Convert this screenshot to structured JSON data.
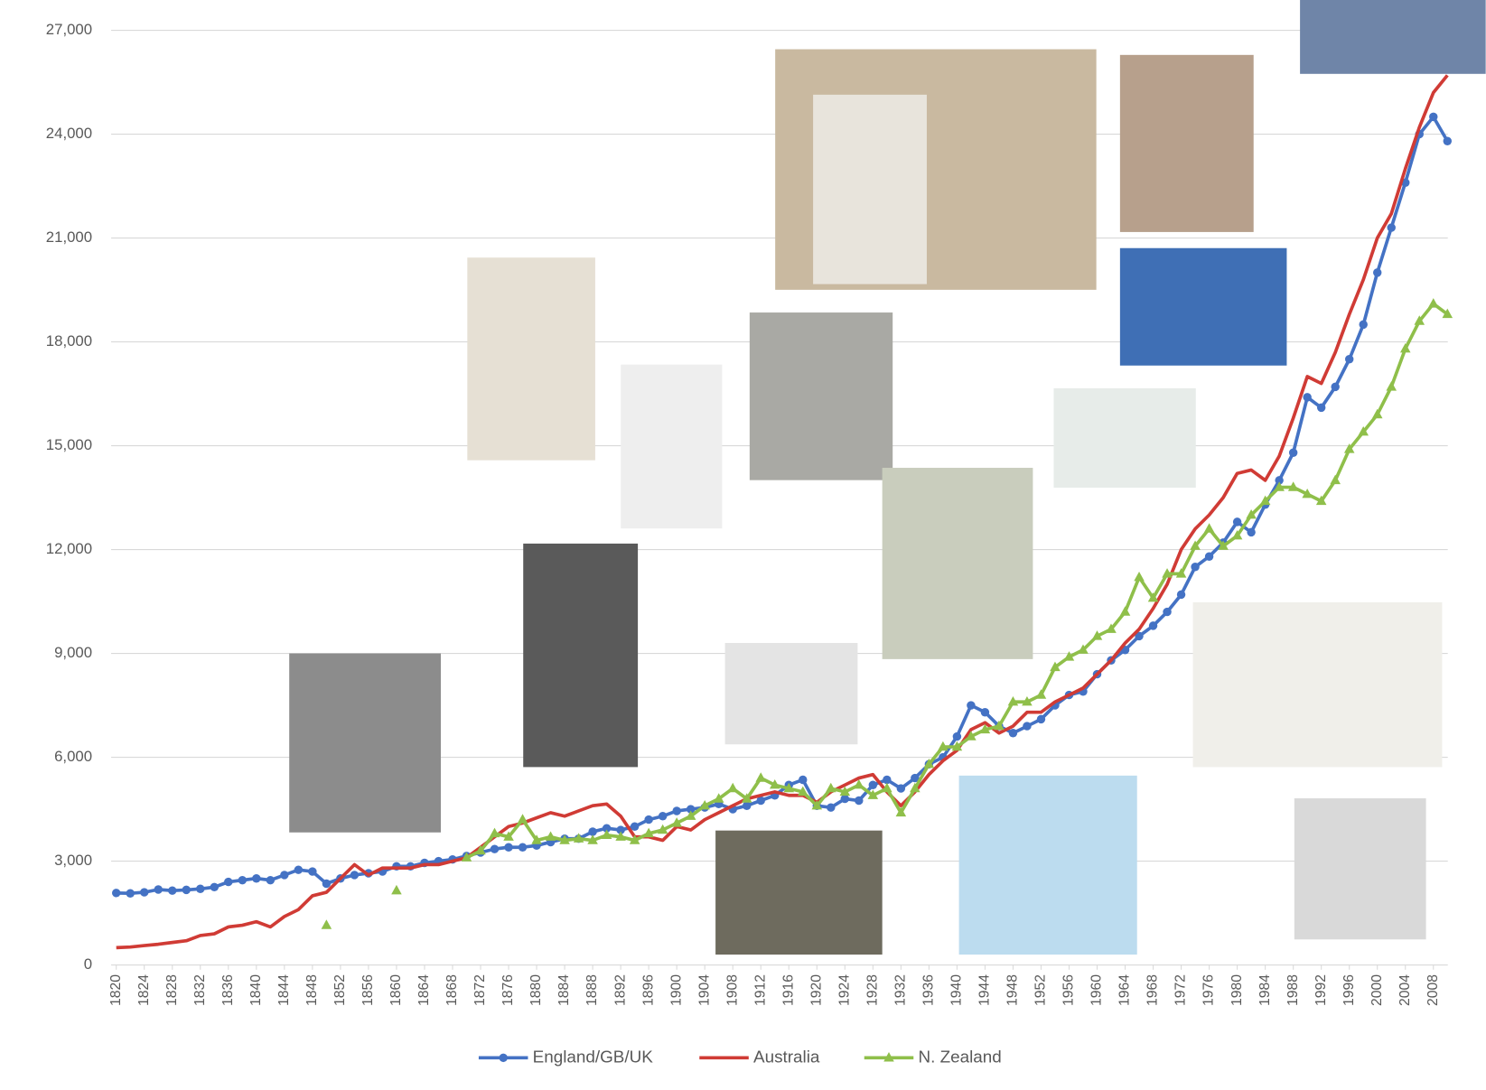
{
  "chart_data": {
    "type": "line",
    "x": [
      1820,
      1822,
      1824,
      1826,
      1828,
      1830,
      1832,
      1834,
      1836,
      1838,
      1840,
      1842,
      1844,
      1846,
      1848,
      1850,
      1852,
      1854,
      1856,
      1858,
      1860,
      1862,
      1864,
      1866,
      1868,
      1870,
      1872,
      1874,
      1876,
      1878,
      1880,
      1882,
      1884,
      1886,
      1888,
      1890,
      1892,
      1894,
      1896,
      1898,
      1900,
      1902,
      1904,
      1906,
      1908,
      1910,
      1912,
      1914,
      1916,
      1918,
      1920,
      1922,
      1924,
      1926,
      1928,
      1930,
      1932,
      1934,
      1936,
      1938,
      1940,
      1942,
      1944,
      1946,
      1948,
      1950,
      1952,
      1954,
      1956,
      1958,
      1960,
      1962,
      1964,
      1966,
      1968,
      1970,
      1972,
      1974,
      1976,
      1978,
      1980,
      1982,
      1984,
      1986,
      1988,
      1990,
      1992,
      1994,
      1996,
      1998,
      2000,
      2002,
      2004,
      2006,
      2008,
      2010
    ],
    "series": [
      {
        "name": "England/GB/UK",
        "color": "#4472c4",
        "marker": "circle",
        "values": [
          2080,
          2070,
          2100,
          2180,
          2150,
          2170,
          2200,
          2250,
          2400,
          2450,
          2500,
          2450,
          2600,
          2750,
          2700,
          2350,
          2500,
          2600,
          2650,
          2700,
          2850,
          2850,
          2950,
          3000,
          3050,
          3150,
          3250,
          3350,
          3400,
          3400,
          3450,
          3550,
          3650,
          3650,
          3850,
          3950,
          3900,
          4000,
          4200,
          4300,
          4450,
          4500,
          4550,
          4650,
          4500,
          4600,
          4750,
          4900,
          5200,
          5350,
          4600,
          4550,
          4800,
          4750,
          5200,
          5350,
          5100,
          5400,
          5800,
          6000,
          6600,
          7500,
          7300,
          6900,
          6700,
          6900,
          7100,
          7500,
          7800,
          7900,
          8400,
          8800,
          9100,
          9500,
          9800,
          10200,
          10700,
          11500,
          11800,
          12200,
          12800,
          12500,
          13300,
          14000,
          14800,
          16400,
          16100,
          16700,
          17500,
          18500,
          20000,
          21300,
          22600,
          24000,
          24500,
          23800
        ]
      },
      {
        "name": "Australia",
        "color": "#d03b35",
        "marker": "none",
        "values": [
          500,
          520,
          560,
          600,
          650,
          700,
          850,
          900,
          1100,
          1150,
          1250,
          1100,
          1400,
          1600,
          2000,
          2100,
          2500,
          2900,
          2600,
          2800,
          2800,
          2800,
          2900,
          2900,
          3000,
          3100,
          3400,
          3700,
          4000,
          4100,
          4250,
          4400,
          4300,
          4450,
          4600,
          4650,
          4300,
          3700,
          3700,
          3600,
          4000,
          3900,
          4200,
          4400,
          4600,
          4800,
          4900,
          5000,
          4900,
          4900,
          4700,
          5000,
          5200,
          5400,
          5500,
          5000,
          4600,
          5000,
          5500,
          5900,
          6200,
          6800,
          7000,
          6700,
          6900,
          7300,
          7300,
          7600,
          7800,
          8000,
          8400,
          8800,
          9300,
          9700,
          10300,
          11000,
          12000,
          12600,
          13000,
          13500,
          14200,
          14300,
          14000,
          14700,
          15800,
          17000,
          16800,
          17700,
          18800,
          19800,
          21000,
          21700,
          23000,
          24200,
          25200,
          25700
        ]
      },
      {
        "name": "N. Zealand",
        "color": "#8fbf4a",
        "marker": "triangle",
        "values": [
          null,
          null,
          null,
          null,
          null,
          null,
          null,
          null,
          null,
          null,
          null,
          null,
          null,
          null,
          null,
          1150,
          null,
          null,
          null,
          null,
          2150,
          null,
          null,
          null,
          null,
          3100,
          3300,
          3800,
          3700,
          4200,
          3600,
          3700,
          3600,
          3650,
          3600,
          3750,
          3700,
          3600,
          3800,
          3900,
          4100,
          4300,
          4600,
          4800,
          5100,
          4800,
          5400,
          5200,
          5100,
          5000,
          4600,
          5100,
          5000,
          5200,
          4900,
          5100,
          4400,
          5100,
          5800,
          6300,
          6300,
          6600,
          6800,
          6900,
          7600,
          7600,
          7800,
          8600,
          8900,
          9100,
          9500,
          9700,
          10200,
          11200,
          10600,
          11300,
          11300,
          12100,
          12600,
          12100,
          12400,
          13000,
          13400,
          13800,
          13800,
          13600,
          13400,
          14000,
          14900,
          15400,
          15900,
          16700,
          17800,
          18600,
          19100,
          18800
        ]
      }
    ],
    "xlim": [
      1819,
      2011
    ],
    "xticks": [
      1820,
      1824,
      1828,
      1832,
      1836,
      1840,
      1844,
      1848,
      1852,
      1856,
      1860,
      1864,
      1868,
      1872,
      1876,
      1880,
      1884,
      1888,
      1892,
      1896,
      1900,
      1904,
      1908,
      1912,
      1916,
      1920,
      1924,
      1928,
      1932,
      1936,
      1940,
      1944,
      1948,
      1952,
      1956,
      1960,
      1964,
      1968,
      1972,
      1976,
      1980,
      1984,
      1988,
      1992,
      1996,
      2000,
      2004,
      2008
    ],
    "ylim": [
      0,
      27000
    ],
    "yticks": [
      0,
      {
        "value": 3000,
        "label": "3,000"
      },
      {
        "value": 6000,
        "label": "6,000"
      },
      {
        "value": 9000,
        "label": "9,000"
      },
      {
        "value": 12000,
        "label": "12,000"
      },
      {
        "value": 15000,
        "label": "15,000"
      },
      {
        "value": 18000,
        "label": "18,000"
      },
      {
        "value": 21000,
        "label": "21,000"
      },
      {
        "value": 24000,
        "label": "24,000"
      },
      {
        "value": 27000,
        "label": "27,000"
      }
    ],
    "grid": true,
    "legend": "bottom"
  }
}
